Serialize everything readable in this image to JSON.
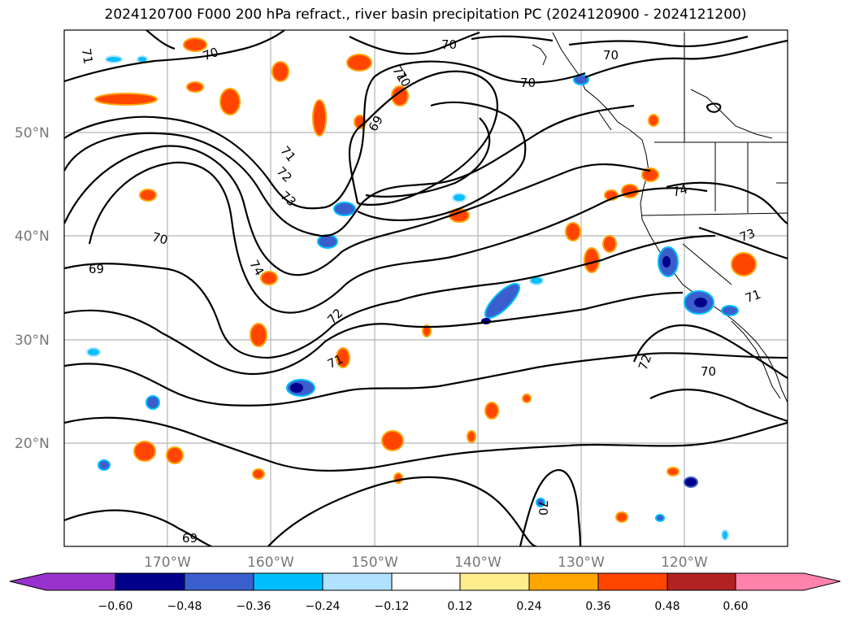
{
  "title": "2024120700 F000 200 hPa refract., river basin precipitation PC (2024120900 - 2024121200)",
  "map": {
    "lat_labels": [
      "50°N",
      "40°N",
      "30°N",
      "20°N"
    ],
    "lon_labels": [
      "170°W",
      "160°W",
      "150°W",
      "140°W",
      "130°W",
      "120°W"
    ],
    "contour_labels": [
      "71",
      "70",
      "69",
      "70",
      "71",
      "72",
      "73",
      "70",
      "69",
      "74",
      "72",
      "71",
      "70",
      "71",
      "70",
      "70",
      "74",
      "73",
      "71",
      "72",
      "70",
      "70",
      "69"
    ]
  },
  "colorbar": {
    "colors": [
      "#9932cc",
      "#00008b",
      "#3a5fcd",
      "#00bfff",
      "#b0e2ff",
      "#ffffff",
      "#ffec8b",
      "#ffa500",
      "#ff4500",
      "#b22222",
      "#ff82ab"
    ],
    "ticks": [
      "−0.60",
      "−0.48",
      "−0.36",
      "−0.24",
      "−0.12",
      "0.12",
      "0.24",
      "0.36",
      "0.48",
      "0.60"
    ]
  }
}
